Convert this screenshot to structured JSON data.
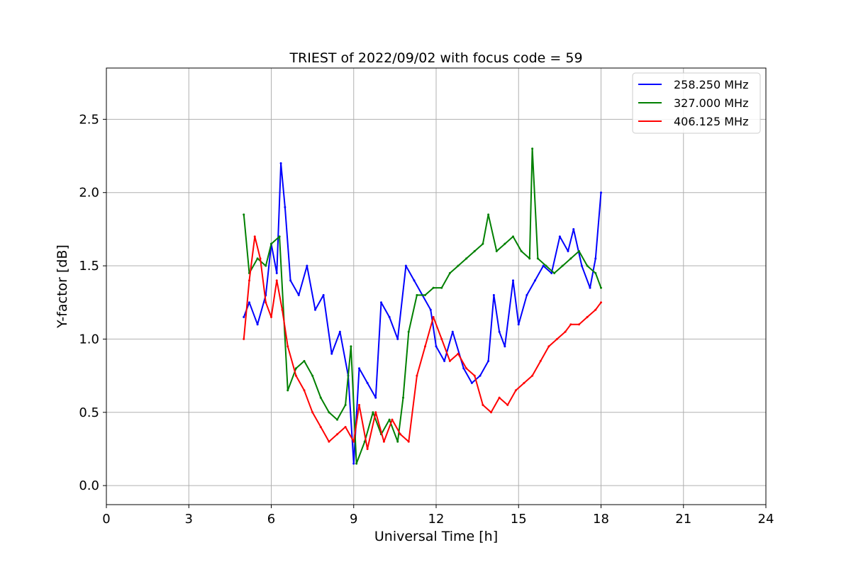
{
  "chart_data": {
    "type": "line",
    "title": "TRIEST of 2022/09/02 with focus code = 59",
    "xlabel": "Universal Time [h]",
    "ylabel": "Y-factor [dB]",
    "xlim": [
      0,
      24
    ],
    "ylim": [
      -0.13,
      2.85
    ],
    "xticks": [
      0,
      3,
      6,
      9,
      12,
      15,
      18,
      21,
      24
    ],
    "yticks": [
      0.0,
      0.5,
      1.0,
      1.5,
      2.0,
      2.5
    ],
    "ytick_labels": [
      "0.0",
      "0.5",
      "1.0",
      "1.5",
      "2.0",
      "2.5"
    ],
    "grid": true,
    "legend_position": "top-right",
    "series": [
      {
        "name": "258.250 MHz",
        "color": "#0000ff",
        "x": [
          5.0,
          5.2,
          5.5,
          5.8,
          6.0,
          6.2,
          6.35,
          6.5,
          6.7,
          7.0,
          7.3,
          7.6,
          7.9,
          8.2,
          8.5,
          8.8,
          9.0,
          9.2,
          9.5,
          9.8,
          10.0,
          10.3,
          10.6,
          10.9,
          11.2,
          11.5,
          11.8,
          12.0,
          12.3,
          12.6,
          13.0,
          13.3,
          13.6,
          13.9,
          14.1,
          14.3,
          14.5,
          14.8,
          15.0,
          15.3,
          15.6,
          15.9,
          16.2,
          16.5,
          16.8,
          17.0,
          17.3,
          17.6,
          17.8,
          18.0
        ],
        "y": [
          1.15,
          1.25,
          1.1,
          1.3,
          1.65,
          1.45,
          2.2,
          1.9,
          1.4,
          1.3,
          1.5,
          1.2,
          1.3,
          0.9,
          1.05,
          0.75,
          0.15,
          0.8,
          0.7,
          0.6,
          1.25,
          1.15,
          1.0,
          1.5,
          1.4,
          1.3,
          1.2,
          0.95,
          0.85,
          1.05,
          0.8,
          0.7,
          0.75,
          0.85,
          1.3,
          1.05,
          0.95,
          1.4,
          1.1,
          1.3,
          1.4,
          1.5,
          1.45,
          1.7,
          1.6,
          1.75,
          1.5,
          1.35,
          1.55,
          2.0
        ]
      },
      {
        "name": "327.000 MHz",
        "color": "#008000",
        "x": [
          5.0,
          5.2,
          5.5,
          5.8,
          6.0,
          6.3,
          6.6,
          6.9,
          7.2,
          7.5,
          7.8,
          8.1,
          8.4,
          8.7,
          8.9,
          9.1,
          9.4,
          9.7,
          10.0,
          10.3,
          10.6,
          10.8,
          11.0,
          11.3,
          11.6,
          11.9,
          12.2,
          12.5,
          12.8,
          13.1,
          13.4,
          13.7,
          13.9,
          14.2,
          14.5,
          14.8,
          15.1,
          15.4,
          15.5,
          15.7,
          16.0,
          16.3,
          16.6,
          16.9,
          17.2,
          17.5,
          17.8,
          18.0
        ],
        "y": [
          1.85,
          1.45,
          1.55,
          1.5,
          1.65,
          1.7,
          0.65,
          0.8,
          0.85,
          0.75,
          0.6,
          0.5,
          0.45,
          0.55,
          0.95,
          0.15,
          0.3,
          0.5,
          0.35,
          0.45,
          0.3,
          0.6,
          1.05,
          1.3,
          1.3,
          1.35,
          1.35,
          1.45,
          1.5,
          1.55,
          1.6,
          1.65,
          1.85,
          1.6,
          1.65,
          1.7,
          1.6,
          1.55,
          2.3,
          1.55,
          1.5,
          1.45,
          1.5,
          1.55,
          1.6,
          1.5,
          1.45,
          1.35
        ]
      },
      {
        "name": "406.125 MHz",
        "color": "#ff0000",
        "x": [
          5.0,
          5.2,
          5.4,
          5.6,
          5.8,
          6.0,
          6.2,
          6.4,
          6.6,
          6.9,
          7.2,
          7.5,
          7.8,
          8.1,
          8.4,
          8.7,
          9.0,
          9.2,
          9.5,
          9.8,
          10.1,
          10.4,
          10.7,
          11.0,
          11.3,
          11.6,
          11.9,
          12.2,
          12.5,
          12.8,
          13.1,
          13.4,
          13.7,
          14.0,
          14.3,
          14.6,
          14.9,
          15.2,
          15.5,
          15.8,
          16.1,
          16.4,
          16.7,
          16.9,
          17.2,
          17.5,
          17.8,
          18.0
        ],
        "y": [
          1.0,
          1.4,
          1.7,
          1.55,
          1.25,
          1.15,
          1.4,
          1.2,
          0.95,
          0.75,
          0.65,
          0.5,
          0.4,
          0.3,
          0.35,
          0.4,
          0.3,
          0.55,
          0.25,
          0.5,
          0.3,
          0.45,
          0.35,
          0.3,
          0.75,
          0.95,
          1.15,
          1.0,
          0.85,
          0.9,
          0.8,
          0.75,
          0.55,
          0.5,
          0.6,
          0.55,
          0.65,
          0.7,
          0.75,
          0.85,
          0.95,
          1.0,
          1.05,
          1.1,
          1.1,
          1.15,
          1.2,
          1.25
        ]
      }
    ]
  }
}
